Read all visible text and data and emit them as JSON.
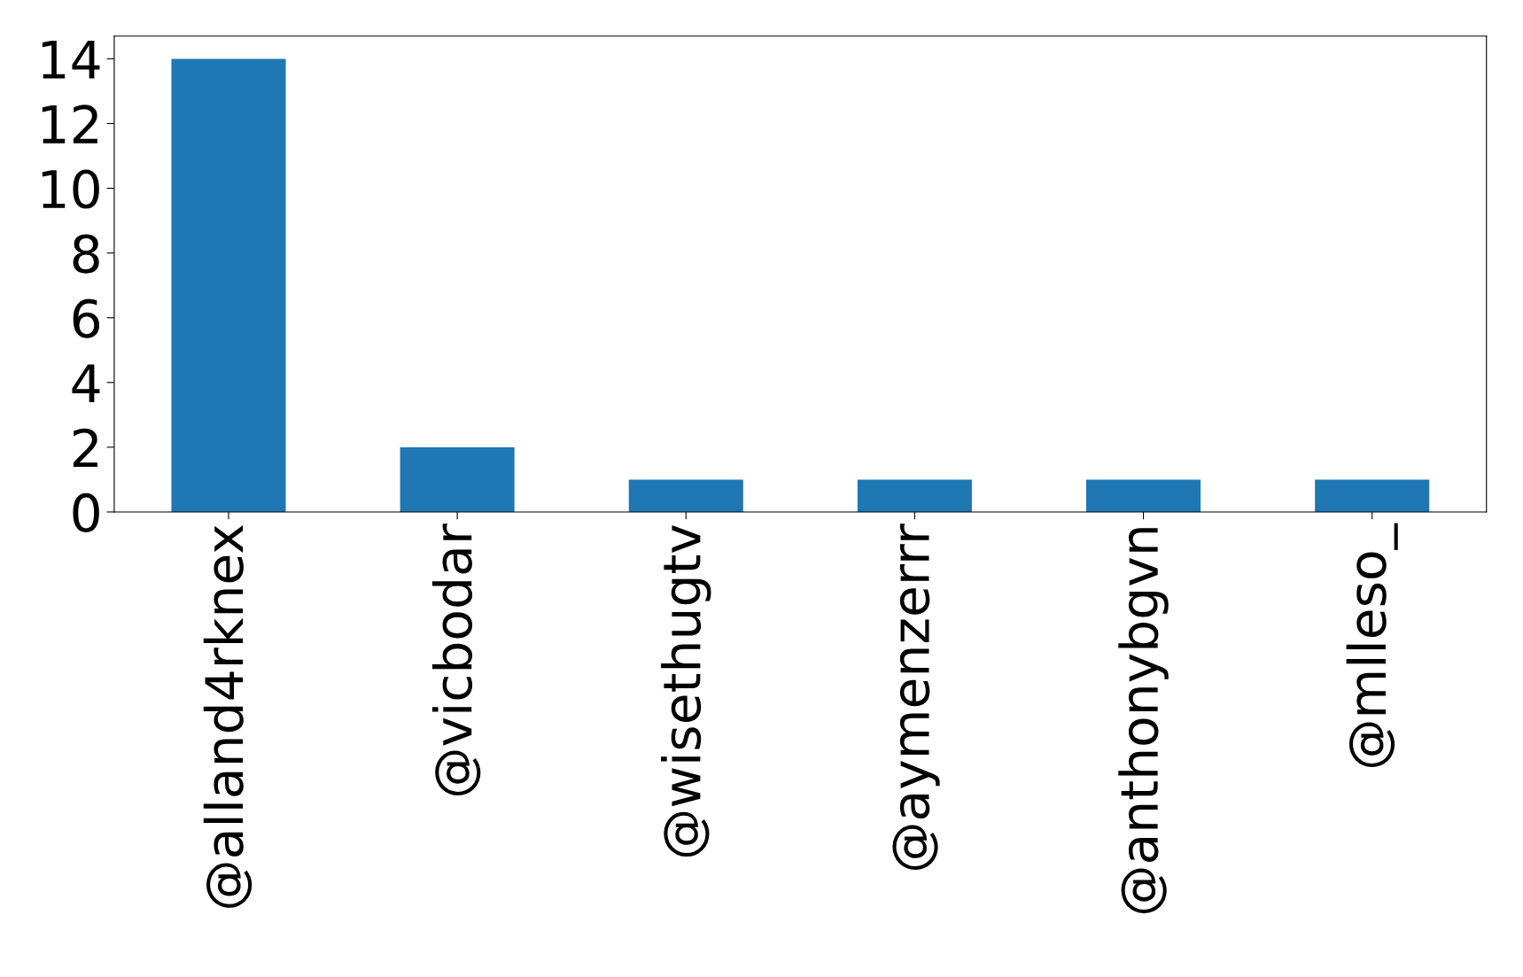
{
  "chart_data": {
    "type": "bar",
    "categories": [
      "@alland4rknex",
      "@vicbodar",
      "@wisethugtv",
      "@aymenzerrr",
      "@anthonybgvn",
      "@mlleso_"
    ],
    "values": [
      14,
      2,
      1,
      1,
      1,
      1
    ],
    "color": "#1f77b4",
    "ylim": [
      0,
      14.7
    ],
    "yticks": [
      0,
      2,
      4,
      6,
      8,
      10,
      12,
      14
    ],
    "grid": false,
    "legend": false
  }
}
